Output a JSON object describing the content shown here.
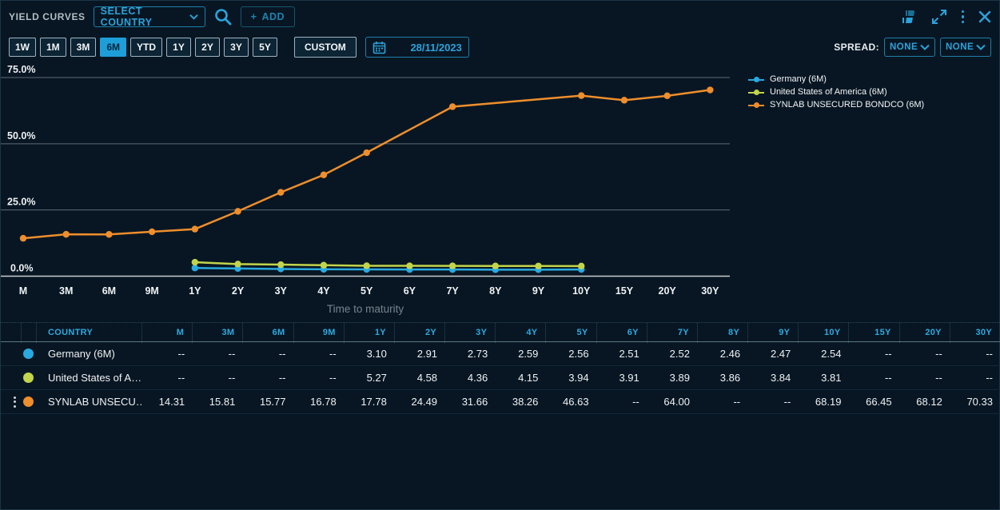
{
  "header": {
    "title": "YIELD CURVES",
    "country_select": "SELECT COUNTRY",
    "add_label": "ADD",
    "plus": "+"
  },
  "toolbar": {
    "periods": [
      "1W",
      "1M",
      "3M",
      "6M",
      "YTD",
      "1Y",
      "2Y",
      "3Y",
      "5Y"
    ],
    "active_period": "6M",
    "custom_label": "CUSTOM",
    "date": "28/11/2023",
    "spread_label": "SPREAD:",
    "spread1": "NONE",
    "spread2": "NONE"
  },
  "chart_data": {
    "type": "line",
    "x_categories": [
      "M",
      "3M",
      "6M",
      "9M",
      "1Y",
      "2Y",
      "3Y",
      "4Y",
      "5Y",
      "6Y",
      "7Y",
      "8Y",
      "9Y",
      "10Y",
      "15Y",
      "20Y",
      "30Y"
    ],
    "xlabel": "Time to maturity",
    "ylim": [
      0,
      75
    ],
    "y_ticks": [
      {
        "value": 0,
        "label": "0.0%"
      },
      {
        "value": 25,
        "label": "25.0%"
      },
      {
        "value": 50,
        "label": "50.0%"
      },
      {
        "value": 75,
        "label": "75.0%"
      }
    ],
    "legend_position": "top-right",
    "grid": "horizontal",
    "series": [
      {
        "name": "Germany (6M)",
        "color": "#29a9e0",
        "values": [
          null,
          null,
          null,
          null,
          3.1,
          2.91,
          2.73,
          2.59,
          2.56,
          2.51,
          2.52,
          2.46,
          2.47,
          2.54,
          null,
          null,
          null
        ]
      },
      {
        "name": "United States of America (6M)",
        "color": "#c2d44b",
        "values": [
          null,
          null,
          null,
          null,
          5.27,
          4.58,
          4.36,
          4.15,
          3.94,
          3.91,
          3.89,
          3.86,
          3.84,
          3.81,
          null,
          null,
          null
        ]
      },
      {
        "name": "SYNLAB UNSECURED BONDCO (6M)",
        "color": "#ee8e2c",
        "values": [
          14.31,
          15.81,
          15.77,
          16.78,
          17.78,
          24.49,
          31.66,
          38.26,
          46.63,
          null,
          64.0,
          null,
          null,
          68.19,
          66.45,
          68.12,
          70.33
        ]
      }
    ]
  },
  "table": {
    "columns": [
      "COUNTRY",
      "M",
      "3M",
      "6M",
      "9M",
      "1Y",
      "2Y",
      "3Y",
      "4Y",
      "5Y",
      "6Y",
      "7Y",
      "8Y",
      "9Y",
      "10Y",
      "15Y",
      "20Y",
      "30Y"
    ],
    "rows": [
      {
        "name": "Germany (6M)",
        "color": "#29a9e0",
        "menu_visible": false,
        "values": [
          "--",
          "--",
          "--",
          "--",
          "3.10",
          "2.91",
          "2.73",
          "2.59",
          "2.56",
          "2.51",
          "2.52",
          "2.46",
          "2.47",
          "2.54",
          "--",
          "--",
          "--"
        ]
      },
      {
        "name": "United States of A…",
        "color": "#c2d44b",
        "menu_visible": false,
        "values": [
          "--",
          "--",
          "--",
          "--",
          "5.27",
          "4.58",
          "4.36",
          "4.15",
          "3.94",
          "3.91",
          "3.89",
          "3.86",
          "3.84",
          "3.81",
          "--",
          "--",
          "--"
        ]
      },
      {
        "name": "SYNLAB UNSECU…",
        "color": "#ee8e2c",
        "menu_visible": true,
        "values": [
          "14.31",
          "15.81",
          "15.77",
          "16.78",
          "17.78",
          "24.49",
          "31.66",
          "38.26",
          "46.63",
          "--",
          "64.00",
          "--",
          "--",
          "68.19",
          "66.45",
          "68.12",
          "70.33"
        ]
      }
    ]
  }
}
